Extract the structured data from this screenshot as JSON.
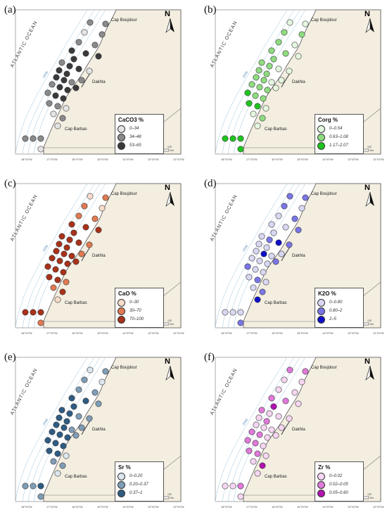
{
  "places": {
    "boujdour": "Cap Boujdour",
    "dakhla": "Dakhla",
    "barbas": "Cap Barbas",
    "ocean": "ATLANTIC OCEAN"
  },
  "north": "N",
  "contour": "-1000",
  "scale": {
    "ticks": [
      "0",
      "15",
      "30",
      "60",
      "90",
      "120"
    ],
    "unit": "Km"
  },
  "lon_ticks": [
    "18°0'0\"W",
    "17°0'0\"W",
    "16°0'0\"W",
    "15°0'0\"W",
    "14°0'0\"W",
    "13°0'0\"W",
    "12°0'0\"W"
  ],
  "panels": [
    {
      "label": "(a)",
      "legend_title": "CaCO3 %",
      "ranges": [
        "0–34",
        "34–48",
        "53–65"
      ],
      "colors": [
        "#e4e4e4",
        "#8a8a8a",
        "#3a3a3a"
      ]
    },
    {
      "label": "(b)",
      "legend_title": "Corg %",
      "ranges": [
        "0–0.54",
        "0.63–1.08",
        "1.17–2.07"
      ],
      "colors": [
        "#e6f7e0",
        "#8fdc80",
        "#1fc41f"
      ]
    },
    {
      "label": "(c)",
      "legend_title": "CaO %",
      "ranges": [
        "0–30",
        "30–70",
        "70–100"
      ],
      "colors": [
        "#f8dccb",
        "#e07a52",
        "#a8321a"
      ]
    },
    {
      "label": "(d)",
      "legend_title": "K2O %",
      "ranges": [
        "0–0.80",
        "0.80–2",
        "2–5"
      ],
      "colors": [
        "#d8d8f4",
        "#7a76e6",
        "#1010c8"
      ]
    },
    {
      "label": "(e)",
      "legend_title": "Sr %",
      "ranges": [
        "0–0.20",
        "0.20–0.37",
        "0.37–1"
      ],
      "colors": [
        "#dde6ef",
        "#7f9db6",
        "#2f5c83"
      ]
    },
    {
      "label": "(f)",
      "legend_title": "Zr %",
      "ranges": [
        "0–0.02",
        "0.02–0.05",
        "0.05–0.60"
      ],
      "colors": [
        "#f6d6f2",
        "#e07ad9",
        "#b014b0"
      ]
    }
  ],
  "stations": [
    {
      "x": 128,
      "y": 28
    },
    {
      "x": 150,
      "y": 30
    },
    {
      "x": 120,
      "y": 42
    },
    {
      "x": 145,
      "y": 45
    },
    {
      "x": 112,
      "y": 56
    },
    {
      "x": 135,
      "y": 60
    },
    {
      "x": 102,
      "y": 68
    },
    {
      "x": 122,
      "y": 72
    },
    {
      "x": 140,
      "y": 76
    },
    {
      "x": 105,
      "y": 80
    },
    {
      "x": 88,
      "y": 85
    },
    {
      "x": 99,
      "y": 90
    },
    {
      "x": 112,
      "y": 94
    },
    {
      "x": 127,
      "y": 97
    },
    {
      "x": 84,
      "y": 96
    },
    {
      "x": 95,
      "y": 101
    },
    {
      "x": 80,
      "y": 106
    },
    {
      "x": 91,
      "y": 110
    },
    {
      "x": 102,
      "y": 113
    },
    {
      "x": 116,
      "y": 110
    },
    {
      "x": 74,
      "y": 116
    },
    {
      "x": 85,
      "y": 120
    },
    {
      "x": 96,
      "y": 124
    },
    {
      "x": 108,
      "y": 121
    },
    {
      "x": 68,
      "y": 128
    },
    {
      "x": 79,
      "y": 132
    },
    {
      "x": 90,
      "y": 136
    },
    {
      "x": 70,
      "y": 143
    },
    {
      "x": 82,
      "y": 147
    },
    {
      "x": 94,
      "y": 150
    },
    {
      "x": 76,
      "y": 158
    },
    {
      "x": 89,
      "y": 164
    },
    {
      "x": 82,
      "y": 175
    },
    {
      "x": 36,
      "y": 193
    },
    {
      "x": 47,
      "y": 193
    },
    {
      "x": 58,
      "y": 193
    },
    {
      "x": 58,
      "y": 208
    }
  ],
  "classes": [
    [
      1,
      1,
      0,
      1,
      1,
      1,
      2,
      2,
      2,
      2,
      1,
      2,
      2,
      0,
      2,
      2,
      2,
      2,
      1,
      1,
      1,
      2,
      2,
      2,
      1,
      2,
      2,
      1,
      1,
      0,
      0,
      1,
      0,
      1,
      1,
      1,
      0
    ],
    [
      0,
      0,
      1,
      1,
      1,
      0,
      1,
      1,
      0,
      1,
      1,
      1,
      0,
      0,
      1,
      1,
      1,
      1,
      0,
      0,
      1,
      1,
      1,
      0,
      2,
      1,
      1,
      2,
      2,
      0,
      0,
      1,
      0,
      2,
      2,
      2,
      2
    ],
    [
      0,
      1,
      1,
      0,
      1,
      1,
      2,
      2,
      2,
      2,
      2,
      2,
      2,
      1,
      2,
      2,
      2,
      2,
      2,
      1,
      2,
      2,
      2,
      2,
      2,
      2,
      2,
      2,
      2,
      1,
      1,
      2,
      0,
      2,
      2,
      2,
      1
    ],
    [
      1,
      1,
      1,
      0,
      0,
      1,
      0,
      0,
      1,
      0,
      0,
      1,
      2,
      1,
      0,
      0,
      0,
      2,
      0,
      0,
      0,
      0,
      0,
      1,
      1,
      0,
      0,
      0,
      1,
      0,
      0,
      1,
      2,
      0,
      0,
      0,
      1
    ],
    [
      0,
      1,
      1,
      0,
      1,
      1,
      2,
      2,
      1,
      2,
      2,
      2,
      1,
      1,
      2,
      2,
      2,
      2,
      1,
      1,
      2,
      2,
      2,
      1,
      2,
      2,
      2,
      2,
      2,
      0,
      1,
      1,
      0,
      1,
      1,
      2,
      1
    ],
    [
      1,
      1,
      0,
      0,
      0,
      0,
      1,
      1,
      0,
      2,
      1,
      0,
      0,
      0,
      0,
      1,
      0,
      0,
      0,
      0,
      1,
      1,
      0,
      0,
      1,
      1,
      0,
      1,
      1,
      0,
      0,
      2,
      0,
      0,
      0,
      1,
      0
    ]
  ]
}
